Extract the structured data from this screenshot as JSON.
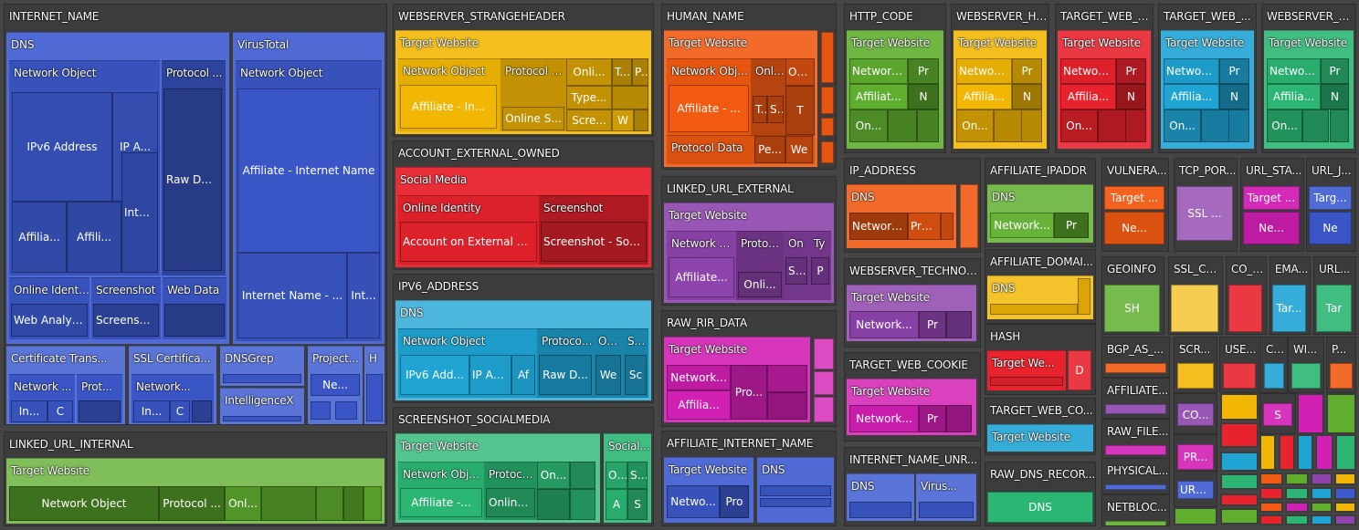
{
  "chart_data": {
    "type": "treemap",
    "title": "",
    "nodes": [
      {
        "label": "INTERNET_NAME",
        "color": "#3d5bd0",
        "children": [
          {
            "label": "DNS",
            "children": [
              {
                "label": "Network Object",
                "children": [
                  {
                    "label": "IPv6 Address"
                  },
                  {
                    "label": "IP A..."
                  },
                  {
                    "label": "Affilia..."
                  },
                  {
                    "label": "Affili..."
                  },
                  {
                    "label": "Inte..."
                  }
                ]
              },
              {
                "label": "Protocol ...",
                "children": [
                  {
                    "label": "Raw DN..."
                  }
                ]
              },
              {
                "label": "Online Identity",
                "children": [
                  {
                    "label": "Web Analyti..."
                  }
                ]
              },
              {
                "label": "Screenshot",
                "children": [
                  {
                    "label": "Screensh..."
                  }
                ]
              },
              {
                "label": "Web Data",
                "children": [
                  {
                    "label": ""
                  }
                ]
              }
            ]
          },
          {
            "label": "VirusTotal",
            "children": [
              {
                "label": "Network Object",
                "children": [
                  {
                    "label": "Affiliate - Internet Name"
                  },
                  {
                    "label": "Internet Name - ..."
                  },
                  {
                    "label": "Int..."
                  }
                ]
              }
            ]
          },
          {
            "label": "Certificate Trans...",
            "children": [
              {
                "label": "Network ...",
                "children": [
                  {
                    "label": "In..."
                  },
                  {
                    "label": "C"
                  }
                ]
              },
              {
                "label": "Prot...",
                "children": [
                  {
                    "label": ""
                  }
                ]
              }
            ]
          },
          {
            "label": "SSL Certifica...",
            "children": [
              {
                "label": "Network...",
                "children": [
                  {
                    "label": "In..."
                  },
                  {
                    "label": "C"
                  }
                ]
              }
            ]
          },
          {
            "label": "DNSGrep",
            "children": [
              {
                "label": ""
              }
            ]
          },
          {
            "label": "IntelligenceX",
            "children": [
              {
                "label": ""
              }
            ]
          },
          {
            "label": "Project...",
            "children": [
              {
                "label": "Ne..."
              }
            ]
          },
          {
            "label": "H",
            "children": [
              {
                "label": ""
              }
            ]
          }
        ]
      },
      {
        "label": "LINKED_URL_INTERNAL",
        "color": "#5fae2e",
        "children": [
          {
            "label": "Target Website",
            "children": [
              {
                "label": "Network Object"
              },
              {
                "label": "Protocol ..."
              },
              {
                "label": "Onl..."
              }
            ]
          }
        ]
      },
      {
        "label": "WEBSERVER_STRANGEHEADER",
        "color": "#f2b705",
        "children": [
          {
            "label": "Target Website",
            "children": [
              {
                "label": "Network Object",
                "children": [
                  {
                    "label": "Affiliate - In..."
                  }
                ]
              },
              {
                "label": "Protocol D...",
                "children": [
                  {
                    "label": "Online S..."
                  }
                ]
              },
              {
                "label": "Onli...",
                "children": [
                  {
                    "label": "Type..."
                  },
                  {
                    "label": "Scre..."
                  }
                ]
              },
              {
                "label": "Tec",
                "children": []
              },
              {
                "label": "Pe",
                "children": []
              },
              {
                "label": "W",
                "children": []
              }
            ]
          }
        ]
      },
      {
        "label": "ACCOUNT_EXTERNAL_OWNED",
        "color": "#e8232d",
        "children": [
          {
            "label": "Social Media",
            "children": [
              {
                "label": "Online Identity",
                "children": [
                  {
                    "label": "Account on External Site"
                  }
                ]
              },
              {
                "label": "Screenshot",
                "children": [
                  {
                    "label": "Screenshot - Soc..."
                  }
                ]
              }
            ]
          }
        ]
      },
      {
        "label": "IPV6_ADDRESS",
        "color": "#1fa4d4",
        "children": [
          {
            "label": "DNS",
            "children": [
              {
                "label": "Network Object",
                "children": [
                  {
                    "label": "IPv6 Add..."
                  },
                  {
                    "label": "IP Ad..."
                  },
                  {
                    "label": "Af"
                  }
                ]
              },
              {
                "label": "Protocol...",
                "children": [
                  {
                    "label": "Raw D..."
                  }
                ]
              },
              {
                "label": "Onl...",
                "children": [
                  {
                    "label": "We"
                  }
                ]
              },
              {
                "label": "Sc...",
                "children": [
                  {
                    "label": "Sc"
                  }
                ]
              }
            ]
          }
        ]
      },
      {
        "label": "SCREENSHOT_SOCIALMEDIA",
        "color": "#2bb673",
        "children": [
          {
            "label": "Target Website",
            "children": [
              {
                "label": "Network Obje...",
                "children": [
                  {
                    "label": "Affiliate -..."
                  }
                ]
              },
              {
                "label": "Protocol...",
                "children": [
                  {
                    "label": "Online..."
                  }
                ]
              },
              {
                "label": "On...",
                "children": []
              }
            ]
          },
          {
            "label": "Social...",
            "children": [
              {
                "label": "On..."
              },
              {
                "label": "Scr"
              },
              {
                "label": "A"
              },
              {
                "label": "S"
              }
            ]
          }
        ]
      },
      {
        "label": "HUMAN_NAME",
        "color": "#f25a12",
        "children": [
          {
            "label": "Target Website",
            "children": [
              {
                "label": "Network Object",
                "children": [
                  {
                    "label": "Affiliate - ..."
                  }
                ]
              },
              {
                "label": "Onli...",
                "children": [
                  {
                    "label": "Typ"
                  },
                  {
                    "label": "Scr"
                  },
                  {
                    "label": "T"
                  }
                ]
              },
              {
                "label": "On...",
                "children": []
              },
              {
                "label": "Protocol Data",
                "children": [
                  {
                    "label": "Pe..."
                  },
                  {
                    "label": "We"
                  }
                ]
              }
            ]
          }
        ]
      },
      {
        "label": "LINKED_URL_EXTERNAL",
        "color": "#8e44ad",
        "children": [
          {
            "label": "Target Website",
            "children": [
              {
                "label": "Network O...",
                "children": [
                  {
                    "label": "Affiliate..."
                  }
                ]
              },
              {
                "label": "Protoc...",
                "children": [
                  {
                    "label": "Onli..."
                  }
                ]
              },
              {
                "label": "On",
                "children": [
                  {
                    "label": "Scr"
                  }
                ]
              },
              {
                "label": "Ty",
                "children": [
                  {
                    "label": "P"
                  }
                ]
              }
            ]
          }
        ]
      },
      {
        "label": "RAW_RIR_DATA",
        "color": "#d21fb4",
        "children": [
          {
            "label": "Target Website",
            "children": [
              {
                "label": "Network..."
              },
              {
                "label": "Pro..."
              },
              {
                "label": "Affilia..."
              }
            ]
          }
        ]
      },
      {
        "label": "AFFILIATE_INTERNET_NAME",
        "color": "#3d5bd0",
        "children": [
          {
            "label": "Target Website",
            "children": [
              {
                "label": "Netwo..."
              },
              {
                "label": "Pro"
              }
            ]
          },
          {
            "label": "DNS",
            "children": []
          }
        ]
      },
      {
        "label": "HTTP_CODE",
        "color": "#5fae2e",
        "children": [
          {
            "label": "Target Website",
            "children": [
              {
                "label": "Network ..."
              },
              {
                "label": "Pr"
              },
              {
                "label": "Affiliat..."
              },
              {
                "label": "N"
              },
              {
                "label": "On..."
              }
            ]
          }
        ]
      },
      {
        "label": "WEBSERVER_HT...",
        "color": "#f2b705",
        "children": [
          {
            "label": "Target Website",
            "children": [
              {
                "label": "Network ..."
              },
              {
                "label": "Pr"
              },
              {
                "label": "Affilia..."
              },
              {
                "label": "N"
              },
              {
                "label": "On..."
              }
            ]
          }
        ]
      },
      {
        "label": "TARGET_WEB_C...",
        "color": "#e8232d",
        "children": [
          {
            "label": "Target Website",
            "children": [
              {
                "label": "Network ..."
              },
              {
                "label": "Pr"
              },
              {
                "label": "Affilia..."
              },
              {
                "label": "N"
              },
              {
                "label": "On..."
              }
            ]
          }
        ]
      },
      {
        "label": "TARGET_WEB_...",
        "color": "#1fa4d4",
        "children": [
          {
            "label": "Target Website",
            "children": [
              {
                "label": "Network..."
              },
              {
                "label": "Pr"
              },
              {
                "label": "Affilia..."
              },
              {
                "label": "N"
              },
              {
                "label": "On..."
              }
            ]
          }
        ]
      },
      {
        "label": "WEBSERVER_B...",
        "color": "#2bb673",
        "children": [
          {
            "label": "Target Website",
            "children": [
              {
                "label": "Network ..."
              },
              {
                "label": "Pr"
              },
              {
                "label": "Affilia..."
              },
              {
                "label": "N"
              },
              {
                "label": "On..."
              }
            ]
          }
        ]
      },
      {
        "label": "IP_ADDRESS",
        "color": "#f25a12",
        "children": [
          {
            "label": "DNS",
            "children": [
              {
                "label": "Network ..."
              },
              {
                "label": "Pro..."
              }
            ]
          }
        ]
      },
      {
        "label": "WEBSERVER_TECHNOL...",
        "color": "#8e44ad",
        "children": [
          {
            "label": "Target Website",
            "children": [
              {
                "label": "Network..."
              },
              {
                "label": "Pr"
              }
            ]
          }
        ]
      },
      {
        "label": "TARGET_WEB_COOKIE",
        "color": "#d21fb4",
        "children": [
          {
            "label": "Target Website",
            "children": [
              {
                "label": "Network..."
              },
              {
                "label": "Pr"
              }
            ]
          }
        ]
      },
      {
        "label": "INTERNET_NAME_UNR...",
        "color": "#3d5bd0",
        "children": [
          {
            "label": "DNS"
          },
          {
            "label": "Virus..."
          }
        ]
      },
      {
        "label": "AFFILIATE_IPADDR",
        "color": "#5fae2e",
        "children": [
          {
            "label": "DNS",
            "children": [
              {
                "label": "Network..."
              },
              {
                "label": "Pr"
              }
            ]
          }
        ]
      },
      {
        "label": "AFFILIATE_DOMAI...",
        "color": "#f2b705",
        "children": [
          {
            "label": "DNS",
            "children": []
          }
        ]
      },
      {
        "label": "HASH",
        "color": "#e8232d",
        "children": [
          {
            "label": "Target We..."
          },
          {
            "label": "D"
          }
        ]
      },
      {
        "label": "TARGET_WEB_CO...",
        "color": "#1fa4d4",
        "children": [
          {
            "label": "Target Website"
          }
        ]
      },
      {
        "label": "RAW_DNS_RECOR...",
        "color": "#2bb673",
        "children": [
          {
            "label": "DNS"
          }
        ]
      },
      {
        "label": "VULNERA...",
        "color": "#f25a12",
        "children": [
          {
            "label": "Target ..."
          },
          {
            "label": "Ne..."
          }
        ]
      },
      {
        "label": "TCP_POR...",
        "color": "#8e44ad",
        "children": [
          {
            "label": "SSL ..."
          }
        ]
      },
      {
        "label": "URL_STA...",
        "color": "#d21fb4",
        "children": [
          {
            "label": "Target ..."
          },
          {
            "label": "Ne..."
          }
        ]
      },
      {
        "label": "URL_J...",
        "color": "#3d5bd0",
        "children": [
          {
            "label": "Targ..."
          },
          {
            "label": "Ne"
          }
        ]
      },
      {
        "label": "GEOINFO",
        "color": "#5fae2e",
        "children": [
          {
            "label": "SH"
          }
        ]
      },
      {
        "label": "SSL_CE...",
        "color": "#f2b705",
        "children": []
      },
      {
        "label": "CO_H...",
        "color": "#e8232d",
        "children": []
      },
      {
        "label": "EMA...",
        "color": "#1fa4d4",
        "children": [
          {
            "label": "Tar..."
          }
        ]
      },
      {
        "label": "URL...",
        "color": "#2bb673",
        "children": [
          {
            "label": "Tar"
          }
        ]
      },
      {
        "label": "BGP_AS_...",
        "color": "#f25a12",
        "children": []
      },
      {
        "label": "AFFILIATE...",
        "color": "#8e44ad",
        "children": []
      },
      {
        "label": "RAW_FILE...",
        "color": "#d21fb4",
        "children": []
      },
      {
        "label": "PHYSICAL...",
        "color": "#3d5bd0",
        "children": []
      },
      {
        "label": "NETBLOC...",
        "color": "#5fae2e",
        "children": []
      },
      {
        "label": "SCR...",
        "color": "#f2b705",
        "children": []
      },
      {
        "label": "USE...",
        "color": "#e8232d",
        "children": []
      },
      {
        "label": "CO...",
        "color": "#1fa4d4",
        "children": []
      },
      {
        "label": "WI...",
        "color": "#2bb673",
        "children": []
      },
      {
        "label": "P...",
        "color": "#f25a12",
        "children": []
      },
      {
        "label": "CO...",
        "color": "#8e44ad",
        "children": []
      },
      {
        "label": "PR...",
        "color": "#d21fb4",
        "children": []
      },
      {
        "label": "URL...",
        "color": "#3d5bd0",
        "children": []
      },
      {
        "label": "S",
        "color": "#d21fb4",
        "children": []
      }
    ]
  }
}
